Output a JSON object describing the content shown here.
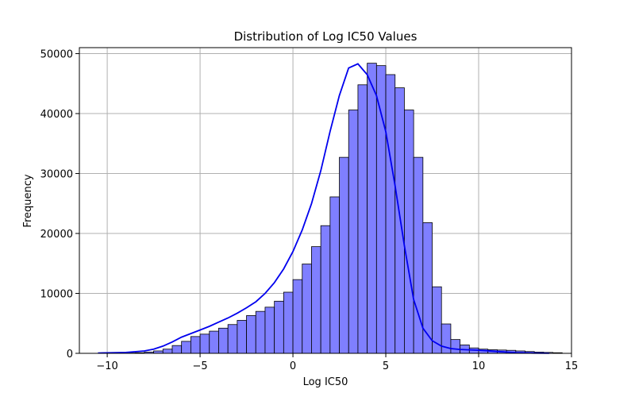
{
  "chart_data": {
    "type": "bar",
    "title": "Distribution of Log IC50 Values",
    "xlabel": "Log IC50",
    "ylabel": "Frequency",
    "xlim": [
      -11.5,
      15
    ],
    "ylim": [
      0,
      51000
    ],
    "x_ticks": [
      -10,
      -5,
      0,
      5,
      10,
      15
    ],
    "x_tick_labels": [
      "−10",
      "−5",
      "0",
      "5",
      "10",
      "15"
    ],
    "y_ticks": [
      0,
      10000,
      20000,
      30000,
      40000,
      50000
    ],
    "y_tick_labels": [
      "0",
      "10000",
      "20000",
      "30000",
      "40000",
      "50000"
    ],
    "grid": true,
    "bar_color": "#7f7fff",
    "line_color": "#0000ee",
    "bin_start": -10.5,
    "bin_width": 0.5,
    "values": [
      10,
      20,
      40,
      60,
      100,
      200,
      400,
      700,
      1300,
      2000,
      2800,
      3200,
      3700,
      4200,
      4800,
      5500,
      6300,
      7000,
      7700,
      8700,
      10200,
      12300,
      14900,
      17800,
      21300,
      26100,
      32700,
      40600,
      44800,
      48400,
      48000,
      46500,
      44300,
      40600,
      32700,
      21800,
      11100,
      4900,
      2300,
      1400,
      900,
      700,
      600,
      550,
      500,
      400,
      300,
      200,
      150,
      100
    ],
    "kde": {
      "x": [
        -10.5,
        -9,
        -8,
        -7.5,
        -7,
        -6.5,
        -6,
        -5.5,
        -5,
        -4.5,
        -4,
        -3.5,
        -3,
        -2.5,
        -2,
        -1.5,
        -1,
        -0.5,
        0,
        0.5,
        1,
        1.5,
        2,
        2.5,
        3,
        3.5,
        4,
        4.5,
        5,
        5.5,
        6,
        6.5,
        7,
        7.5,
        8,
        8.5,
        9,
        9.5,
        10,
        10.5,
        11,
        12,
        13,
        13.8
      ],
      "y": [
        50,
        150,
        400,
        700,
        1200,
        1900,
        2700,
        3300,
        3900,
        4500,
        5200,
        5900,
        6700,
        7600,
        8600,
        10000,
        11800,
        14100,
        17000,
        20600,
        25000,
        30500,
        37000,
        43000,
        47600,
        48300,
        46500,
        43000,
        37000,
        28000,
        18000,
        9000,
        4200,
        2100,
        1200,
        800,
        650,
        580,
        520,
        420,
        300,
        120,
        40,
        10
      ]
    }
  }
}
